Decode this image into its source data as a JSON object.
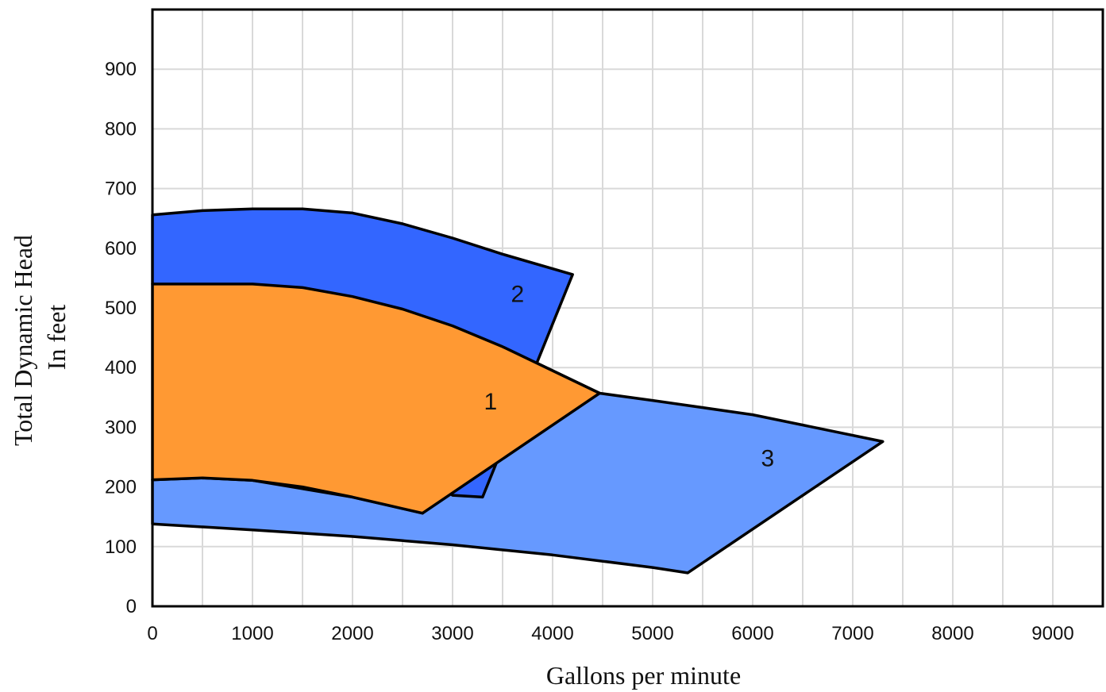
{
  "chart_data": {
    "type": "area",
    "title": "",
    "xlabel": "Gallons per minute",
    "ylabel_lines": [
      "Total Dynamic Head",
      "In feet"
    ],
    "xlim": [
      0,
      9500
    ],
    "ylim": [
      0,
      1000
    ],
    "x_ticks": [
      0,
      1000,
      2000,
      3000,
      4000,
      5000,
      6000,
      7000,
      8000,
      9000
    ],
    "y_ticks": [
      0,
      100,
      200,
      300,
      400,
      500,
      600,
      700,
      800,
      900
    ],
    "grid": true,
    "grid_x_step": 500,
    "grid_y_step": 100,
    "regions": [
      {
        "label": "3",
        "color": "#6699ff",
        "label_at": [
          6150,
          235
        ],
        "points": [
          [
            0,
            138
          ],
          [
            1000,
            128
          ],
          [
            2000,
            117
          ],
          [
            3000,
            103
          ],
          [
            4000,
            86
          ],
          [
            5000,
            65
          ],
          [
            5350,
            56
          ],
          [
            7300,
            276
          ],
          [
            6000,
            321
          ],
          [
            5000,
            345
          ],
          [
            4470,
            357
          ],
          [
            3800,
            411
          ],
          [
            2700,
            156
          ],
          [
            2000,
            183
          ],
          [
            1000,
            211
          ],
          [
            500,
            215
          ],
          [
            0,
            212
          ]
        ]
      },
      {
        "label": "2",
        "color": "#3366ff",
        "label_at": [
          3650,
          510
        ],
        "points": [
          [
            0,
            656
          ],
          [
            500,
            663
          ],
          [
            1000,
            666
          ],
          [
            1500,
            666
          ],
          [
            2000,
            659
          ],
          [
            2500,
            641
          ],
          [
            3000,
            617
          ],
          [
            3500,
            590
          ],
          [
            4200,
            556
          ],
          [
            3300,
            183
          ],
          [
            3000,
            186
          ],
          [
            0,
            540
          ]
        ]
      },
      {
        "label": "1",
        "color": "#ff9933",
        "label_at": [
          3380,
          330
        ],
        "points": [
          [
            0,
            212
          ],
          [
            500,
            215
          ],
          [
            1000,
            211
          ],
          [
            1500,
            200
          ],
          [
            2000,
            183
          ],
          [
            2700,
            156
          ],
          [
            4470,
            357
          ],
          [
            3500,
            435
          ],
          [
            3000,
            470
          ],
          [
            2500,
            498
          ],
          [
            2000,
            519
          ],
          [
            1500,
            534
          ],
          [
            1000,
            540
          ],
          [
            500,
            540
          ],
          [
            0,
            540
          ]
        ]
      }
    ]
  }
}
